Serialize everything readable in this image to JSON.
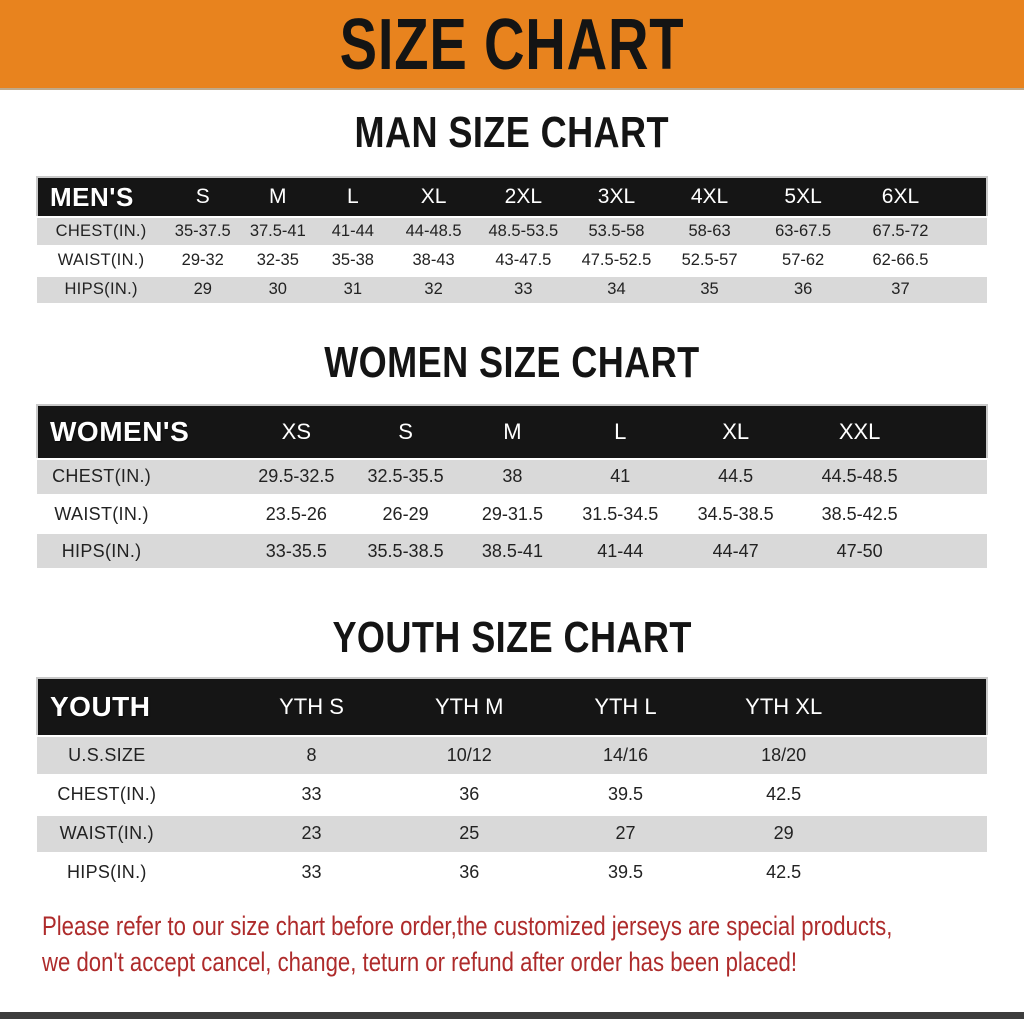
{
  "banner": {
    "title": "SIZE CHART"
  },
  "colors": {
    "banner_bg": "#E8831E",
    "header_bar_bg": "#151515",
    "row_stripe": "#D9D9D9",
    "notice_text": "#AE2B2B"
  },
  "sections": [
    {
      "id": "men",
      "title": "MAN SIZE CHART",
      "label": "MEN'S",
      "sizes": [
        "S",
        "M",
        "L",
        "XL",
        "2XL",
        "3XL",
        "4XL",
        "5XL",
        "6XL"
      ],
      "rows": [
        {
          "label": "CHEST(IN.)",
          "values": [
            "35-37.5",
            "37.5-41",
            "41-44",
            "44-48.5",
            "48.5-53.5",
            "53.5-58",
            "58-63",
            "63-67.5",
            "67.5-72"
          ]
        },
        {
          "label": "WAIST(IN.)",
          "values": [
            "29-32",
            "32-35",
            "35-38",
            "38-43",
            "43-47.5",
            "47.5-52.5",
            "52.5-57",
            "57-62",
            "62-66.5"
          ]
        },
        {
          "label": "HIPS(IN.)",
          "values": [
            "29",
            "30",
            "31",
            "32",
            "33",
            "34",
            "35",
            "36",
            "37"
          ]
        }
      ]
    },
    {
      "id": "women",
      "title": "WOMEN SIZE CHART",
      "label": "WOMEN'S",
      "sizes": [
        "XS",
        "S",
        "M",
        "L",
        "XL",
        "XXL"
      ],
      "rows": [
        {
          "label": "CHEST(IN.)",
          "values": [
            "29.5-32.5",
            "32.5-35.5",
            "38",
            "41",
            "44.5",
            "44.5-48.5"
          ]
        },
        {
          "label": "WAIST(IN.)",
          "values": [
            "23.5-26",
            "26-29",
            "29-31.5",
            "31.5-34.5",
            "34.5-38.5",
            "38.5-42.5"
          ]
        },
        {
          "label": "HIPS(IN.)",
          "values": [
            "33-35.5",
            "35.5-38.5",
            "38.5-41",
            "41-44",
            "44-47",
            "47-50"
          ]
        }
      ]
    },
    {
      "id": "youth",
      "title": "YOUTH SIZE CHART",
      "label": "YOUTH",
      "sizes": [
        "YTH S",
        "YTH M",
        "YTH L",
        "YTH XL"
      ],
      "rows": [
        {
          "label": "U.S.SIZE",
          "values": [
            "8",
            "10/12",
            "14/16",
            "18/20"
          ]
        },
        {
          "label": "CHEST(IN.)",
          "values": [
            "33",
            "36",
            "39.5",
            "42.5"
          ]
        },
        {
          "label": "WAIST(IN.)",
          "values": [
            "23",
            "25",
            "27",
            "29"
          ]
        },
        {
          "label": "HIPS(IN.)",
          "values": [
            "33",
            "36",
            "39.5",
            "42.5"
          ]
        }
      ]
    }
  ],
  "footer": {
    "lines": [
      "Please refer to our size chart before order,the customized jerseys are special products,",
      "we don't accept cancel, change, teturn or refund after order has been placed!"
    ]
  }
}
